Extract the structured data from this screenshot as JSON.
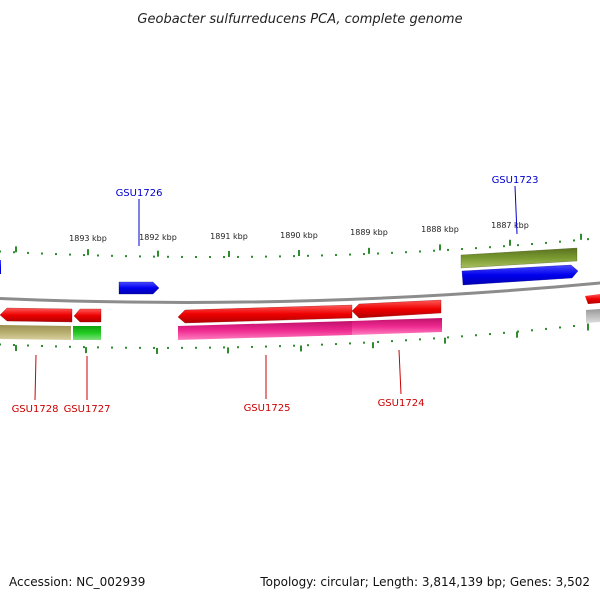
{
  "title": "Geobacter sulfurreducens PCA, complete genome",
  "footer": {
    "accession": "Accession: NC_002939",
    "summary": "Topology: circular; Length: 3,814,139 bp; Genes: 3,502"
  },
  "colors": {
    "forward_label": "#0000cc",
    "reverse_label": "#cc0000",
    "backbone": "#8c8c8c",
    "tick": "#2e8b2e"
  },
  "ticks": [
    {
      "label": "1893 kbp"
    },
    {
      "label": "1892 kbp"
    },
    {
      "label": "1891 kbp"
    },
    {
      "label": "1890 kbp"
    },
    {
      "label": "1889 kbp"
    },
    {
      "label": "1888 kbp"
    },
    {
      "label": "1887 kbp"
    }
  ],
  "labels": {
    "gsu1726": "GSU1726",
    "gsu1723": "GSU1723",
    "gsu1728": "GSU1728",
    "gsu1727": "GSU1727",
    "gsu1725": "GSU1725",
    "gsu1724": "GSU1724"
  }
}
